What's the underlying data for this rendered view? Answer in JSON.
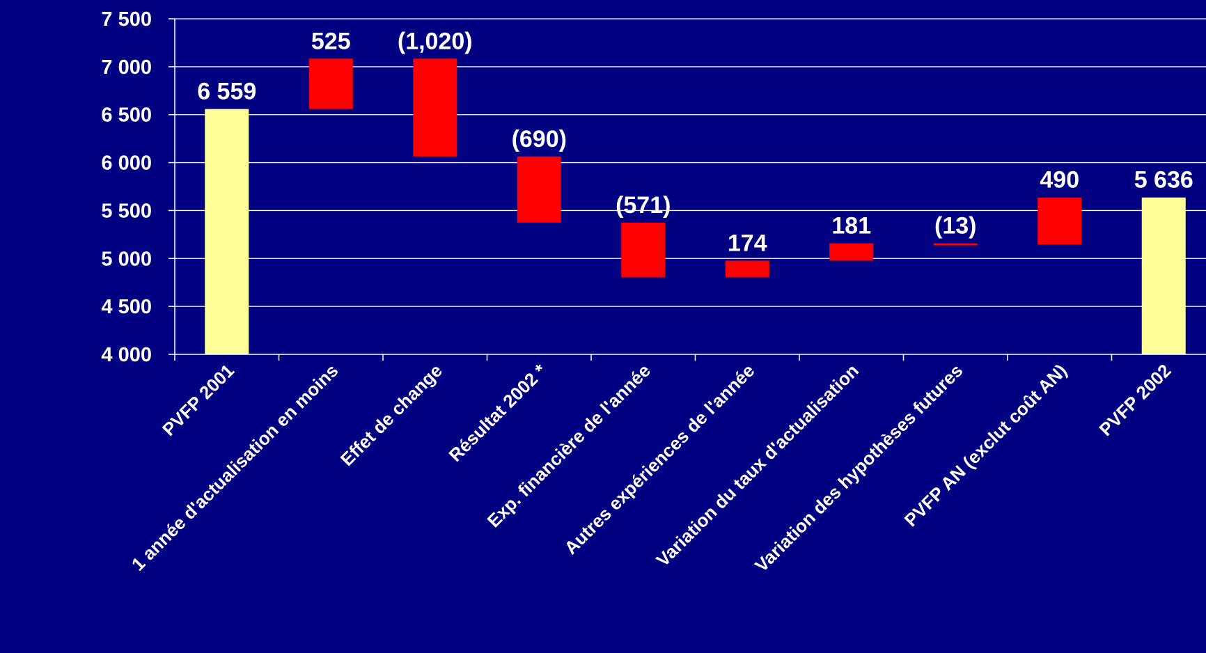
{
  "chart_data": {
    "type": "bar",
    "subtype": "waterfall",
    "title": "",
    "xlabel": "",
    "ylabel": "",
    "ylim": [
      4000,
      7500
    ],
    "y_ticks": [
      4000,
      4500,
      5000,
      5500,
      6000,
      6500,
      7000,
      7500
    ],
    "y_tick_labels": [
      "4 000",
      "4 500",
      "5 000",
      "5 500",
      "6 000",
      "6 500",
      "7 000",
      "7 500"
    ],
    "grid": true,
    "legend": "none",
    "colors": {
      "background": "#000080",
      "total": "#FFFF99",
      "change": "#FF0000",
      "text": "#FFFFFF",
      "grid": "#FFFFFF"
    },
    "bars": [
      {
        "category": "PVFP 2001",
        "kind": "total",
        "bottom": 4000,
        "top": 6559,
        "label": "6 559"
      },
      {
        "category": "1 année d'actualisation en moins",
        "kind": "change",
        "bottom": 6559,
        "top": 7084,
        "label": "525"
      },
      {
        "category": "Effet de change",
        "kind": "change",
        "bottom": 6064,
        "top": 7084,
        "label": "(1,020)"
      },
      {
        "category": "Résultat 2002 *",
        "kind": "change",
        "bottom": 5374,
        "top": 6064,
        "label": "(690)"
      },
      {
        "category": "Exp. financière de l'année",
        "kind": "change",
        "bottom": 4803,
        "top": 5374,
        "label": "(571)"
      },
      {
        "category": "Autres expériences de l'année",
        "kind": "change",
        "bottom": 4803,
        "top": 4977,
        "label": "174"
      },
      {
        "category": "Variation du taux d'actualisation",
        "kind": "change",
        "bottom": 4977,
        "top": 5158,
        "label": "181"
      },
      {
        "category": "Variation des hypothèses futures",
        "kind": "change",
        "bottom": 5145,
        "top": 5158,
        "label": "(13)"
      },
      {
        "category": "PVFP AN (exclut coût AN)",
        "kind": "change",
        "bottom": 5146,
        "top": 5636,
        "label": "490"
      },
      {
        "category": "PVFP 2002",
        "kind": "total",
        "bottom": 4000,
        "top": 5636,
        "label": "5 636"
      }
    ]
  }
}
